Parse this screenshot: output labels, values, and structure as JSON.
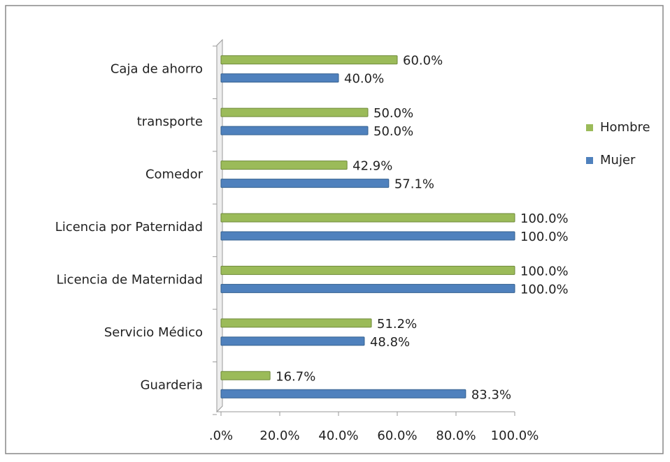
{
  "chart_data": {
    "type": "bar",
    "orientation": "horizontal",
    "categories": [
      "Caja de ahorro",
      "transporte",
      "Comedor",
      "Licencia por Paternidad",
      "Licencia de Maternidad",
      "Servicio Médico",
      "Guarderia"
    ],
    "series": [
      {
        "name": "Hombre",
        "color": "#9bbb59",
        "values": [
          60,
          50,
          42.9,
          100,
          100,
          51.2,
          16.7
        ],
        "value_labels": [
          "60.0%",
          "50.0%",
          "42.9%",
          "100.0%",
          "100.0%",
          "51.2%",
          "16.7%"
        ]
      },
      {
        "name": "Mujer",
        "color": "#4f81bd",
        "values": [
          40,
          50,
          57.1,
          100,
          100,
          48.8,
          83.3
        ],
        "value_labels": [
          "40.0%",
          "50.0%",
          "57.1%",
          "100.0%",
          "100.0%",
          "48.8%",
          "83.3%"
        ]
      }
    ],
    "xlim": [
      0,
      100
    ],
    "xticks": [
      {
        "value": 0,
        "label": ".0%"
      },
      {
        "value": 20,
        "label": "20.0%"
      },
      {
        "value": 40,
        "label": "40.0%"
      },
      {
        "value": 60,
        "label": "60.0%"
      },
      {
        "value": 80,
        "label": "80.0%"
      },
      {
        "value": 100,
        "label": "100.0%"
      }
    ],
    "legend": "right"
  }
}
